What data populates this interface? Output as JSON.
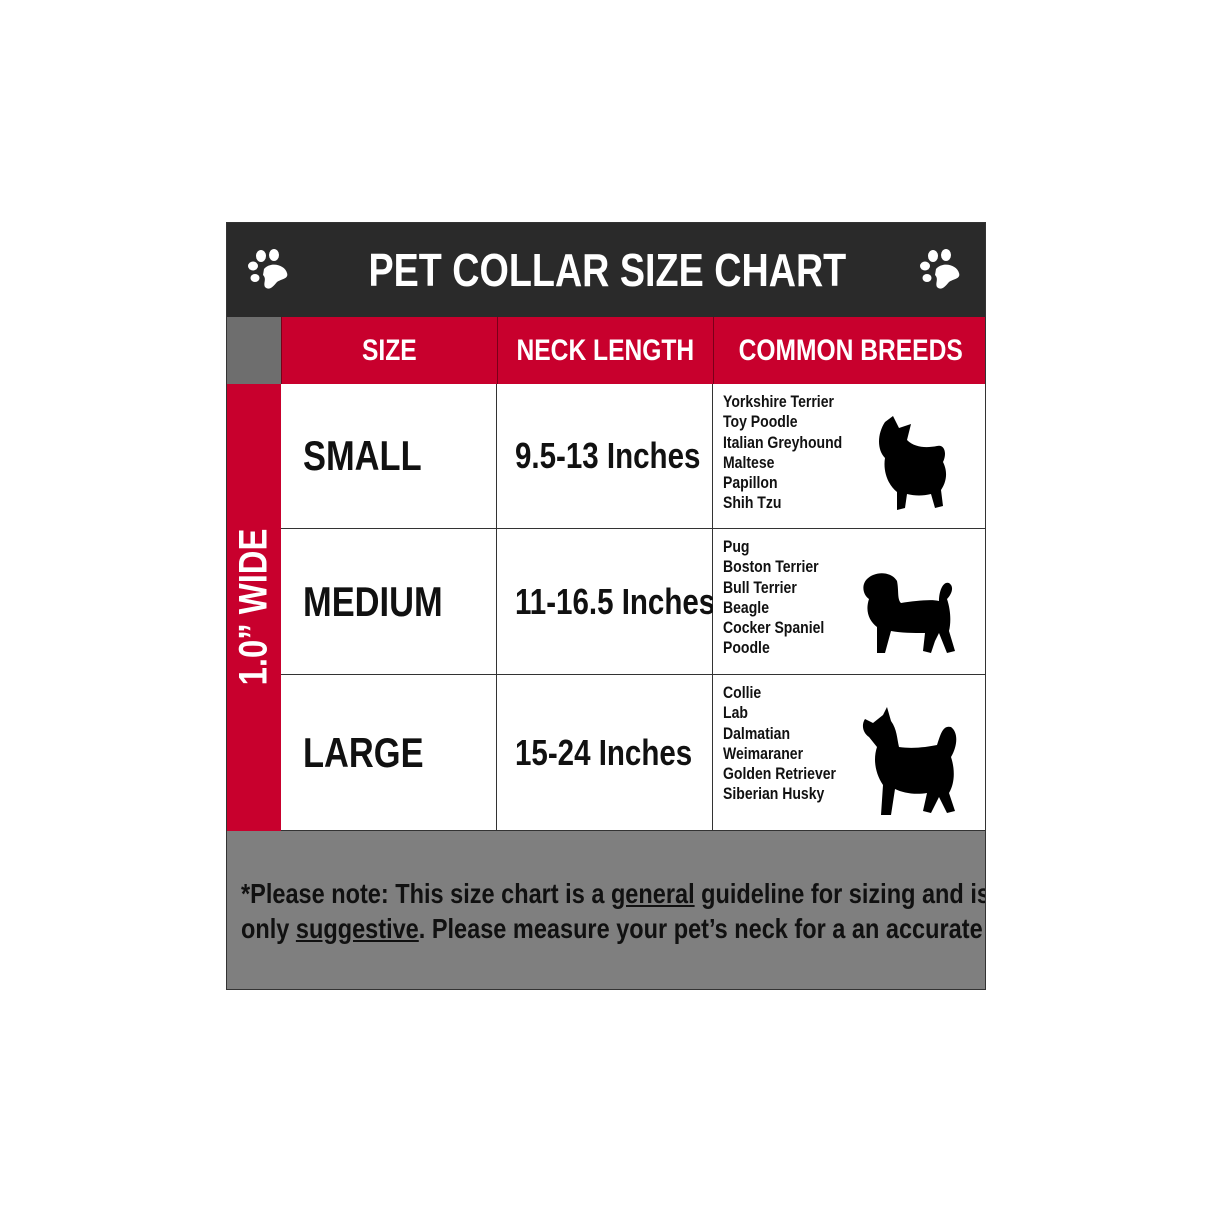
{
  "title": "PET COLLAR SIZE CHART",
  "icons": {
    "left": "paw-print-icon",
    "right": "paw-print-icon"
  },
  "colors": {
    "header_bg": "#2a2a2a",
    "accent_red": "#c8002d",
    "footer_bg": "#7f7f7f",
    "corner_gray": "#6e6e6e"
  },
  "side_label": "1.0” WIDE",
  "columns": [
    "SIZE",
    "NECK LENGTH",
    "COMMON BREEDS"
  ],
  "rows": [
    {
      "size": "SMALL",
      "neck": "9.5-13 Inches",
      "breeds": [
        "Yorkshire Terrier",
        "Toy Poodle",
        "Italian Greyhound",
        "Maltese",
        "Papillon",
        "Shih Tzu"
      ],
      "dog_icon": "yorkshire-terrier-silhouette"
    },
    {
      "size": "MEDIUM",
      "neck": "11-16.5 Inches",
      "breeds": [
        "Pug",
        "Boston Terrier",
        "Bull Terrier",
        "Beagle",
        "Cocker Spaniel",
        "Poodle"
      ],
      "dog_icon": "pug-silhouette"
    },
    {
      "size": "LARGE",
      "neck": "15-24 Inches",
      "breeds": [
        "Collie",
        "Lab",
        "Dalmatian",
        "Weimaraner",
        "Golden Retriever",
        "Siberian Husky"
      ],
      "dog_icon": "husky-silhouette"
    }
  ],
  "note": {
    "p1": "*Please note: This size chart is a ",
    "u1": "general",
    "p2": " guideline for sizing and is",
    "p3": "only ",
    "u2": "suggestive",
    "p4": ". Please measure your pet’s neck for a an accurate fit."
  }
}
